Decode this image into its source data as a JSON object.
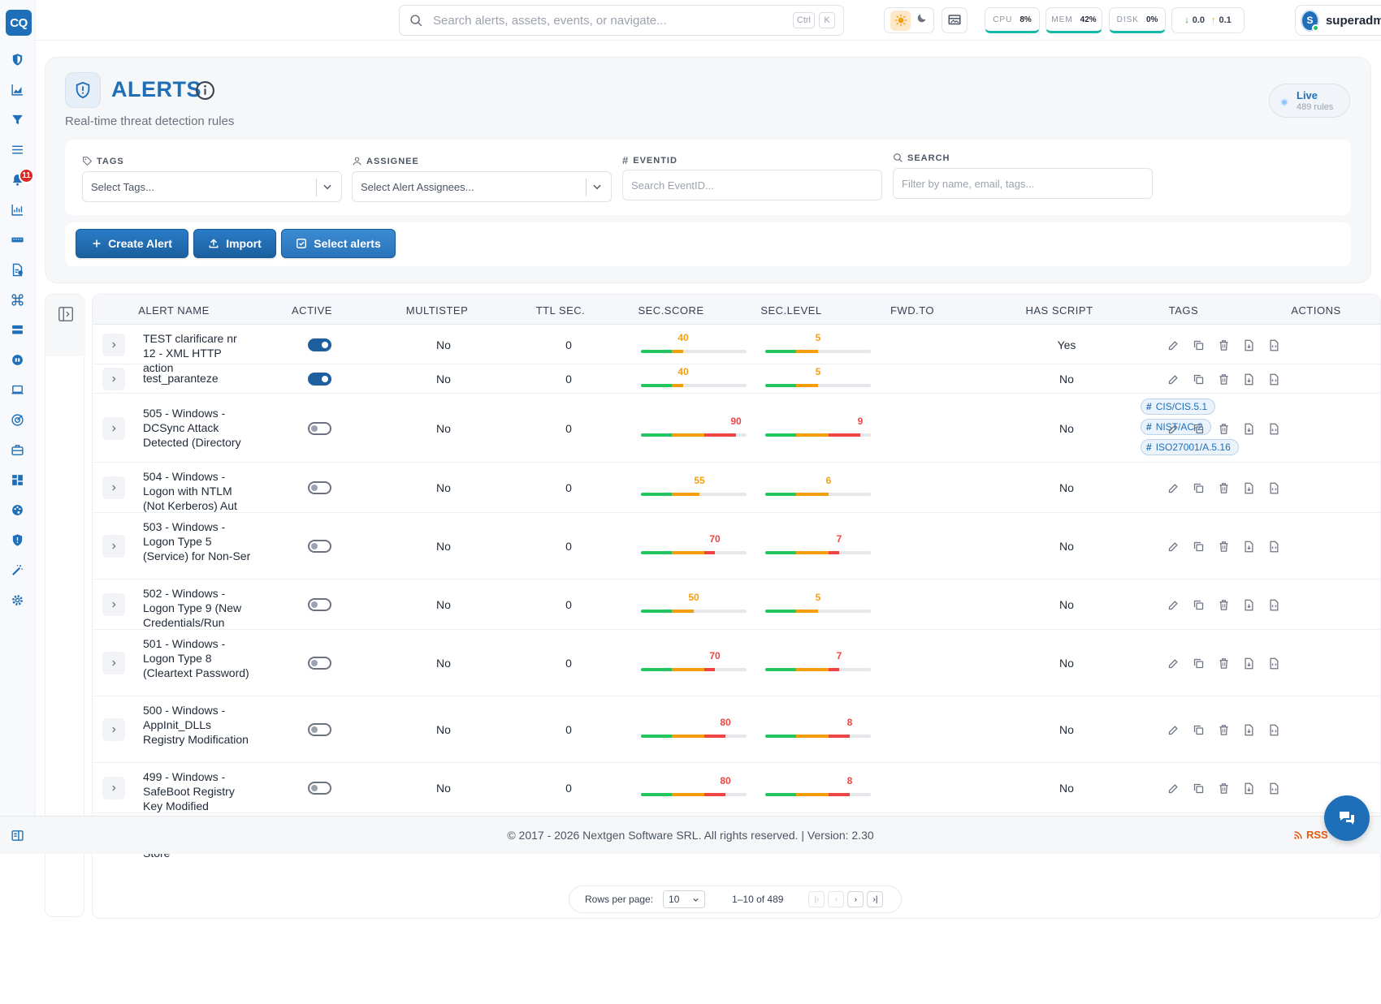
{
  "app": {
    "logo": "CQ"
  },
  "sidebar": {
    "icons": [
      "shield-icon",
      "chart-area-icon",
      "funnel-icon",
      "list-icon",
      "bell-icon",
      "chart-line-icon",
      "server-rack-icon",
      "file-check-icon",
      "command-icon",
      "storage-icon",
      "gamepad-icon",
      "laptop-icon",
      "target-icon",
      "briefcase-icon",
      "dashboard-icon",
      "palette-icon",
      "shield-alert-icon",
      "magic-wand-icon",
      "gear-icon"
    ],
    "bell_badge": "11"
  },
  "topbar": {
    "search_placeholder": "Search alerts, assets, events, or navigate...",
    "kbd1": "Ctrl",
    "kbd2": "K",
    "cpu_label": "CPU",
    "cpu_value": "8%",
    "mem_label": "MEM",
    "mem_value": "42%",
    "disk_label": "DISK",
    "disk_value": "0%",
    "net_down": "0.0",
    "net_up": "0.1",
    "user_initial": "S",
    "username": "superadmin"
  },
  "header": {
    "title": "ALERTS",
    "subtitle": "Real-time threat detection rules",
    "live_title": "Live",
    "live_sub": "489 rules"
  },
  "filters": {
    "tags_label": "TAGS",
    "tags_placeholder": "Select Tags...",
    "assignee_label": "ASSIGNEE",
    "assignee_placeholder": "Select Alert Assignees...",
    "eventid_label": "EVENTID",
    "eventid_placeholder": "Search EventID...",
    "search_label": "SEARCH",
    "search_placeholder": "Filter by name, email, tags..."
  },
  "actions": {
    "create": "Create Alert",
    "import": "Import",
    "select": "Select alerts"
  },
  "table": {
    "columns": [
      "ALERT NAME",
      "ACTIVE",
      "MULTISTEP",
      "TTL SEC.",
      "SEC.SCORE",
      "SEC.LEVEL",
      "FWD.TO",
      "HAS SCRIPT",
      "TAGS",
      "ACTIONS"
    ],
    "rows": [
      {
        "name": "TEST clarificare nr 12 - XML HTTP action",
        "active": true,
        "multistep": "No",
        "ttl": "0",
        "score": "40",
        "score_val": 40,
        "level": "5",
        "level_val": 5,
        "has_script": "Yes",
        "tags": []
      },
      {
        "name": "test_paranteze",
        "active": true,
        "multistep": "No",
        "ttl": "0",
        "score": "40",
        "score_val": 40,
        "level": "5",
        "level_val": 5,
        "has_script": "No",
        "tags": []
      },
      {
        "name": "505 - Windows - DCSync Attack Detected (Directory",
        "active": false,
        "multistep": "No",
        "ttl": "0",
        "score": "90",
        "score_val": 90,
        "level": "9",
        "level_val": 9,
        "has_script": "No",
        "tags": [
          "CIS/CIS.5.1",
          "NIST/AC-2",
          "ISO27001/A.5.16"
        ]
      },
      {
        "name": "504 - Windows - Logon with NTLM (Not Kerberos) Aut",
        "active": false,
        "multistep": "No",
        "ttl": "0",
        "score": "55",
        "score_val": 55,
        "level": "6",
        "level_val": 6,
        "has_script": "No",
        "tags": []
      },
      {
        "name": "503 - Windows - Logon Type 5 (Service) for Non-Ser",
        "active": false,
        "multistep": "No",
        "ttl": "0",
        "score": "70",
        "score_val": 70,
        "level": "7",
        "level_val": 7,
        "has_script": "No",
        "tags": []
      },
      {
        "name": "502 - Windows - Logon Type 9 (New Credentials/Run",
        "active": false,
        "multistep": "No",
        "ttl": "0",
        "score": "50",
        "score_val": 50,
        "level": "5",
        "level_val": 5,
        "has_script": "No",
        "tags": []
      },
      {
        "name": "501 - Windows - Logon Type 8 (Cleartext Password)",
        "active": false,
        "multistep": "No",
        "ttl": "0",
        "score": "70",
        "score_val": 70,
        "level": "7",
        "level_val": 7,
        "has_script": "No",
        "tags": []
      },
      {
        "name": "500 - Windows - AppInit_DLLs Registry Modification",
        "active": false,
        "multistep": "No",
        "ttl": "0",
        "score": "80",
        "score_val": 80,
        "level": "8",
        "level_val": 8,
        "has_script": "No",
        "tags": []
      },
      {
        "name": "499 - Windows - SafeBoot Registry Key Modified",
        "active": false,
        "multistep": "No",
        "ttl": "0",
        "score": "80",
        "score_val": 80,
        "level": "8",
        "level_val": 8,
        "has_script": "No",
        "tags": []
      }
    ],
    "partial_row_text": "Password/Credenti al Store"
  },
  "footer": {
    "copyright": "© 2017 - 2026 Nextgen Software SRL. All rights reserved. | Version: 2.30",
    "rss": "RSS"
  },
  "pagination": {
    "rows_per_page_label": "Rows per page:",
    "rows_per_page": "10",
    "range": "1–10 of 489"
  },
  "colors": {
    "accent": "#1e6fb8",
    "green": "#22c55e",
    "amber": "#f59e0b",
    "red": "#ef4444"
  }
}
